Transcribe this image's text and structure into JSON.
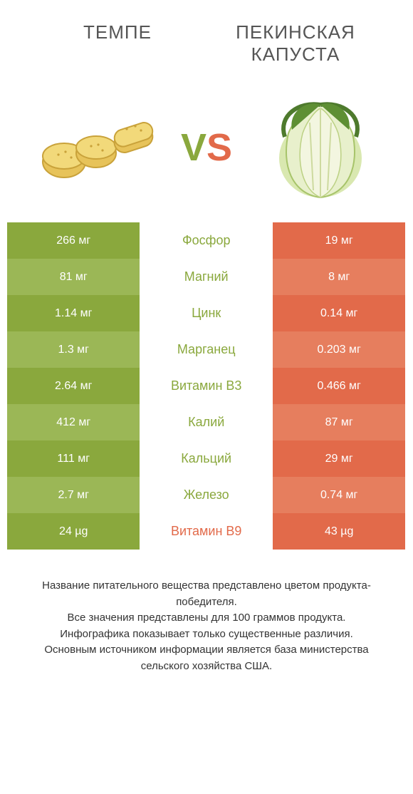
{
  "colors": {
    "left_bg_dark": "#8aa83d",
    "left_bg_light": "#9bb756",
    "right_bg_dark": "#e26a4a",
    "right_bg_light": "#e67e5e",
    "nutrient_left_text": "#8aa83d",
    "nutrient_right_text": "#e26a4a",
    "value_text": "#ffffff",
    "title_text": "#555555",
    "footer_text": "#333333",
    "background": "#ffffff"
  },
  "header": {
    "left_title": "ТЕМПЕ",
    "right_title": "ПЕКИНСКАЯ КАПУСТА",
    "vs_v": "V",
    "vs_s": "S"
  },
  "rows": [
    {
      "nutrient": "Фосфор",
      "left": "266 мг",
      "right": "19 мг",
      "winner": "left"
    },
    {
      "nutrient": "Магний",
      "left": "81 мг",
      "right": "8 мг",
      "winner": "left"
    },
    {
      "nutrient": "Цинк",
      "left": "1.14 мг",
      "right": "0.14 мг",
      "winner": "left"
    },
    {
      "nutrient": "Марганец",
      "left": "1.3 мг",
      "right": "0.203 мг",
      "winner": "left"
    },
    {
      "nutrient": "Витамин B3",
      "left": "2.64 мг",
      "right": "0.466 мг",
      "winner": "left"
    },
    {
      "nutrient": "Калий",
      "left": "412 мг",
      "right": "87 мг",
      "winner": "left"
    },
    {
      "nutrient": "Кальций",
      "left": "111 мг",
      "right": "29 мг",
      "winner": "left"
    },
    {
      "nutrient": "Железо",
      "left": "2.7 мг",
      "right": "0.74 мг",
      "winner": "left"
    },
    {
      "nutrient": "Витамин B9",
      "left": "24 µg",
      "right": "43 µg",
      "winner": "right"
    }
  ],
  "footer": {
    "line1": "Название питательного вещества представлено цветом продукта-победителя.",
    "line2": "Все значения представлены для 100 граммов продукта.",
    "line3": "Инфографика показывает только существенные различия.",
    "line4": "Основным источником информации является база министерства сельского хозяйства США."
  },
  "icons": {
    "tempeh": "tempeh-icon",
    "cabbage": "cabbage-icon"
  }
}
